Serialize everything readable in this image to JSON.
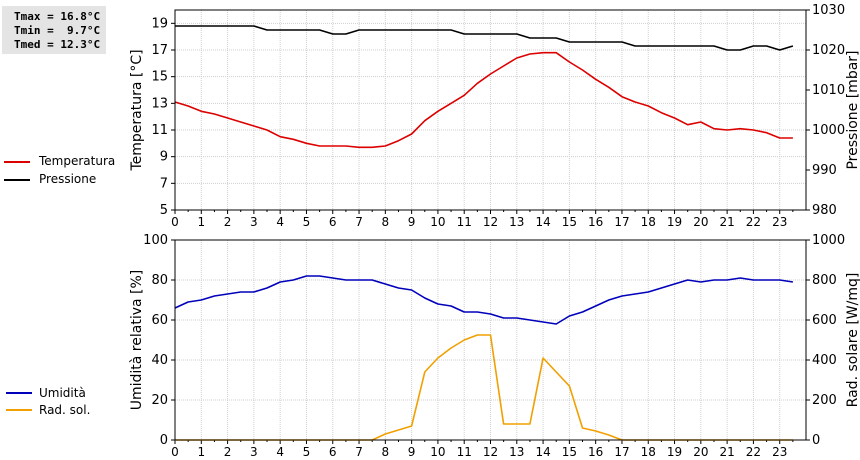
{
  "stats": {
    "tmax": "Tmax = 16.8°C",
    "tmin": "Tmin =  9.7°C",
    "tmed": "Tmed = 12.3°C"
  },
  "legend_top": [
    {
      "label": "Temperatura",
      "color": "#dd0000"
    },
    {
      "label": "Pressione",
      "color": "#000000"
    }
  ],
  "legend_bottom": [
    {
      "label": "Umidità",
      "color": "#0000bb"
    },
    {
      "label": "Rad. sol.",
      "color": "#f0a000"
    }
  ],
  "chart_data": [
    {
      "type": "line",
      "ylabel": "Temperatura [°C]",
      "y2label": "Pressione [mbar]",
      "xlim": [
        0,
        24
      ],
      "ylim": [
        5,
        20
      ],
      "y2lim": [
        980,
        1030
      ],
      "xticks": [
        "0",
        "1",
        "2",
        "3",
        "4",
        "5",
        "6",
        "7",
        "8",
        "9",
        "10",
        "11",
        "12",
        "13",
        "14",
        "15",
        "16",
        "17",
        "18",
        "19",
        "20",
        "21",
        "22",
        "23"
      ],
      "yticks": [
        "5",
        "7",
        "9",
        "11",
        "13",
        "15",
        "17",
        "19"
      ],
      "y2ticks": [
        "980",
        "990",
        "1000",
        "1010",
        "1020",
        "1030"
      ],
      "grid": true,
      "series": [
        {
          "name": "Temperatura",
          "axis": "left",
          "color": "#dd0000",
          "x": [
            0,
            0.5,
            1,
            1.5,
            2,
            2.5,
            3,
            3.5,
            4,
            4.5,
            5,
            5.5,
            6,
            6.5,
            7,
            7.5,
            8,
            8.5,
            9,
            9.5,
            10,
            10.5,
            11,
            11.5,
            12,
            12.5,
            13,
            13.5,
            14,
            14.5,
            15,
            15.5,
            16,
            16.5,
            17,
            17.5,
            18,
            18.5,
            19,
            19.5,
            20,
            20.5,
            21,
            21.5,
            22,
            22.5,
            23,
            23.5
          ],
          "y": [
            13.1,
            12.8,
            12.4,
            12.2,
            11.9,
            11.6,
            11.3,
            11.0,
            10.5,
            10.3,
            10.0,
            9.8,
            9.8,
            9.8,
            9.7,
            9.7,
            9.8,
            10.2,
            10.7,
            11.7,
            12.4,
            13.0,
            13.6,
            14.5,
            15.2,
            15.8,
            16.4,
            16.7,
            16.8,
            16.8,
            16.1,
            15.5,
            14.8,
            14.2,
            13.5,
            13.1,
            12.8,
            12.3,
            11.9,
            11.4,
            11.6,
            11.1,
            11.0,
            11.1,
            11.0,
            10.8,
            10.4,
            10.4
          ]
        },
        {
          "name": "Pressione",
          "axis": "right",
          "color": "#000000",
          "x": [
            0,
            0.5,
            1,
            1.5,
            2,
            2.5,
            3,
            3.5,
            4,
            4.5,
            5,
            5.5,
            6,
            6.5,
            7,
            7.5,
            8,
            8.5,
            9,
            9.5,
            10,
            10.5,
            11,
            11.5,
            12,
            12.5,
            13,
            13.5,
            14,
            14.5,
            15,
            15.5,
            16,
            16.5,
            17,
            17.5,
            18,
            18.5,
            19,
            19.5,
            20,
            20.5,
            21,
            21.5,
            22,
            22.5,
            23,
            23.5
          ],
          "y": [
            1026,
            1026,
            1026,
            1026,
            1026,
            1026,
            1026,
            1025,
            1025,
            1025,
            1025,
            1025,
            1024,
            1024,
            1025,
            1025,
            1025,
            1025,
            1025,
            1025,
            1025,
            1025,
            1024,
            1024,
            1024,
            1024,
            1024,
            1023,
            1023,
            1023,
            1022,
            1022,
            1022,
            1022,
            1022,
            1021,
            1021,
            1021,
            1021,
            1021,
            1021,
            1021,
            1020,
            1020,
            1021,
            1021,
            1020,
            1021
          ]
        }
      ]
    },
    {
      "type": "line",
      "ylabel": "Umidità relativa [%]",
      "y2label": "Rad. solare [W/mq]",
      "xlim": [
        0,
        24
      ],
      "ylim": [
        0,
        100
      ],
      "y2lim": [
        0,
        1000
      ],
      "xticks": [
        "0",
        "1",
        "2",
        "3",
        "4",
        "5",
        "6",
        "7",
        "8",
        "9",
        "10",
        "11",
        "12",
        "13",
        "14",
        "15",
        "16",
        "17",
        "18",
        "19",
        "20",
        "21",
        "22",
        "23"
      ],
      "yticks": [
        "0",
        "20",
        "40",
        "60",
        "80",
        "100"
      ],
      "y2ticks": [
        "0",
        "200",
        "400",
        "600",
        "800",
        "1000"
      ],
      "grid": true,
      "series": [
        {
          "name": "Umidità",
          "axis": "left",
          "color": "#0000bb",
          "x": [
            0,
            0.5,
            1,
            1.5,
            2,
            2.5,
            3,
            3.5,
            4,
            4.5,
            5,
            5.5,
            6,
            6.5,
            7,
            7.5,
            8,
            8.5,
            9,
            9.5,
            10,
            10.5,
            11,
            11.5,
            12,
            12.5,
            13,
            13.5,
            14,
            14.5,
            15,
            15.5,
            16,
            16.5,
            17,
            17.5,
            18,
            18.5,
            19,
            19.5,
            20,
            20.5,
            21,
            21.5,
            22,
            22.5,
            23,
            23.5
          ],
          "y": [
            66,
            69,
            70,
            72,
            73,
            74,
            74,
            76,
            79,
            80,
            82,
            82,
            81,
            80,
            80,
            80,
            78,
            76,
            75,
            71,
            68,
            67,
            64,
            64,
            63,
            61,
            61,
            60,
            59,
            58,
            62,
            64,
            67,
            70,
            72,
            73,
            74,
            76,
            78,
            80,
            79,
            80,
            80,
            81,
            80,
            80,
            80,
            79
          ]
        },
        {
          "name": "Rad. sol.",
          "axis": "right",
          "color": "#f0a000",
          "x": [
            0,
            0.5,
            1,
            1.5,
            2,
            2.5,
            3,
            3.5,
            4,
            4.5,
            5,
            5.5,
            6,
            6.5,
            7,
            7.5,
            8,
            8.5,
            9,
            9.5,
            10,
            10.5,
            11,
            11.5,
            12,
            12.5,
            13,
            13.5,
            14,
            14.5,
            15,
            15.5,
            16,
            16.5,
            17,
            17.5,
            18,
            18.5,
            19,
            19.5,
            20,
            20.5,
            21,
            21.5,
            22,
            22.5,
            23,
            23.5
          ],
          "y": [
            0,
            0,
            0,
            0,
            0,
            0,
            0,
            0,
            0,
            0,
            0,
            0,
            0,
            0,
            0,
            0,
            30,
            50,
            70,
            340,
            410,
            460,
            500,
            525,
            525,
            80,
            80,
            80,
            410,
            340,
            270,
            60,
            45,
            25,
            0,
            0,
            0,
            0,
            0,
            0,
            0,
            0,
            0,
            0,
            0,
            0,
            0,
            0
          ]
        }
      ]
    }
  ]
}
